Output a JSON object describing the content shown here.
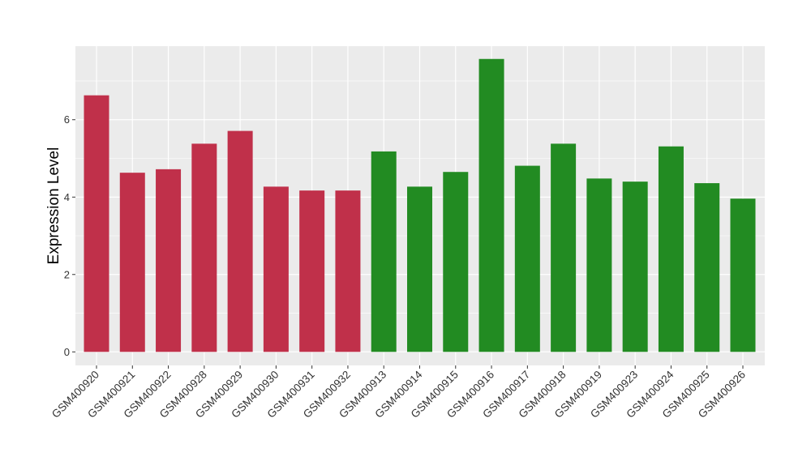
{
  "chart_data": {
    "type": "bar",
    "title": "",
    "xlabel": "",
    "ylabel": "Expression Level",
    "ylim": [
      -0.35,
      7.9
    ],
    "yticks": [
      0,
      2,
      4,
      6
    ],
    "grid": true,
    "legend": "none",
    "categories": [
      "GSM400920",
      "GSM400921",
      "GSM400922",
      "GSM400928",
      "GSM400929",
      "GSM400930",
      "GSM400931",
      "GSM400932",
      "GSM400913",
      "GSM400914",
      "GSM400915",
      "GSM400916",
      "GSM400917",
      "GSM400918",
      "GSM400919",
      "GSM400923",
      "GSM400924",
      "GSM400925",
      "GSM400926"
    ],
    "values": [
      6.63,
      4.63,
      4.72,
      5.38,
      5.71,
      4.27,
      4.17,
      4.17,
      5.18,
      4.27,
      4.65,
      7.57,
      4.81,
      5.38,
      4.48,
      4.4,
      5.31,
      4.36,
      3.96
    ],
    "bar_colors": [
      "#C0304A",
      "#C0304A",
      "#C0304A",
      "#C0304A",
      "#C0304A",
      "#C0304A",
      "#C0304A",
      "#C0304A",
      "#228B22",
      "#228B22",
      "#228B22",
      "#228B22",
      "#228B22",
      "#228B22",
      "#228B22",
      "#228B22",
      "#228B22",
      "#228B22",
      "#228B22"
    ],
    "panel_color": "#EBEBEB",
    "grid_color": "#FFFFFF"
  }
}
